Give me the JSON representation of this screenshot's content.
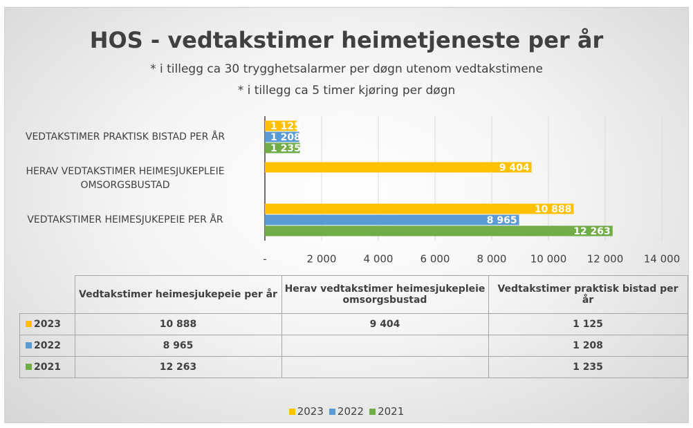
{
  "chart_data": {
    "type": "bar",
    "orientation": "horizontal",
    "title": "HOS - vedtakstimer heimetjeneste per år",
    "subtitle": [
      "* i tillegg ca 30 trygghetsalarmer per døgn utenom vedtakstimene",
      "* i tillegg ca 5 timer kjøring per døgn"
    ],
    "categories": [
      "Vedtakstimer heimesjukepeie per år",
      "Herav vedtakstimer heimesjukepleie omsorgsbustad",
      "Vedtakstimer praktisk bistad per år"
    ],
    "series": [
      {
        "name": "2023",
        "color": "#ffc000",
        "values": [
          10888,
          9404,
          1125
        ],
        "value_labels": [
          "10 888",
          "9 404",
          "1 125"
        ]
      },
      {
        "name": "2022",
        "color": "#5b9bd5",
        "values": [
          8965,
          null,
          1208
        ],
        "value_labels": [
          "8 965",
          null,
          "1 208"
        ]
      },
      {
        "name": "2021",
        "color": "#70ad47",
        "values": [
          12263,
          null,
          1235
        ],
        "value_labels": [
          "12 263",
          null,
          "1 235"
        ]
      }
    ],
    "xlim": [
      0,
      14000
    ],
    "xticks": [
      {
        "value": 0,
        "label": "-"
      },
      {
        "value": 2000,
        "label": "2 000"
      },
      {
        "value": 4000,
        "label": "4 000"
      },
      {
        "value": 6000,
        "label": "6 000"
      },
      {
        "value": 8000,
        "label": "8 000"
      },
      {
        "value": 10000,
        "label": "10 000"
      },
      {
        "value": 12000,
        "label": "12 000"
      },
      {
        "value": 14000,
        "label": "14 000"
      }
    ],
    "grid": true,
    "legend": "bottom"
  }
}
